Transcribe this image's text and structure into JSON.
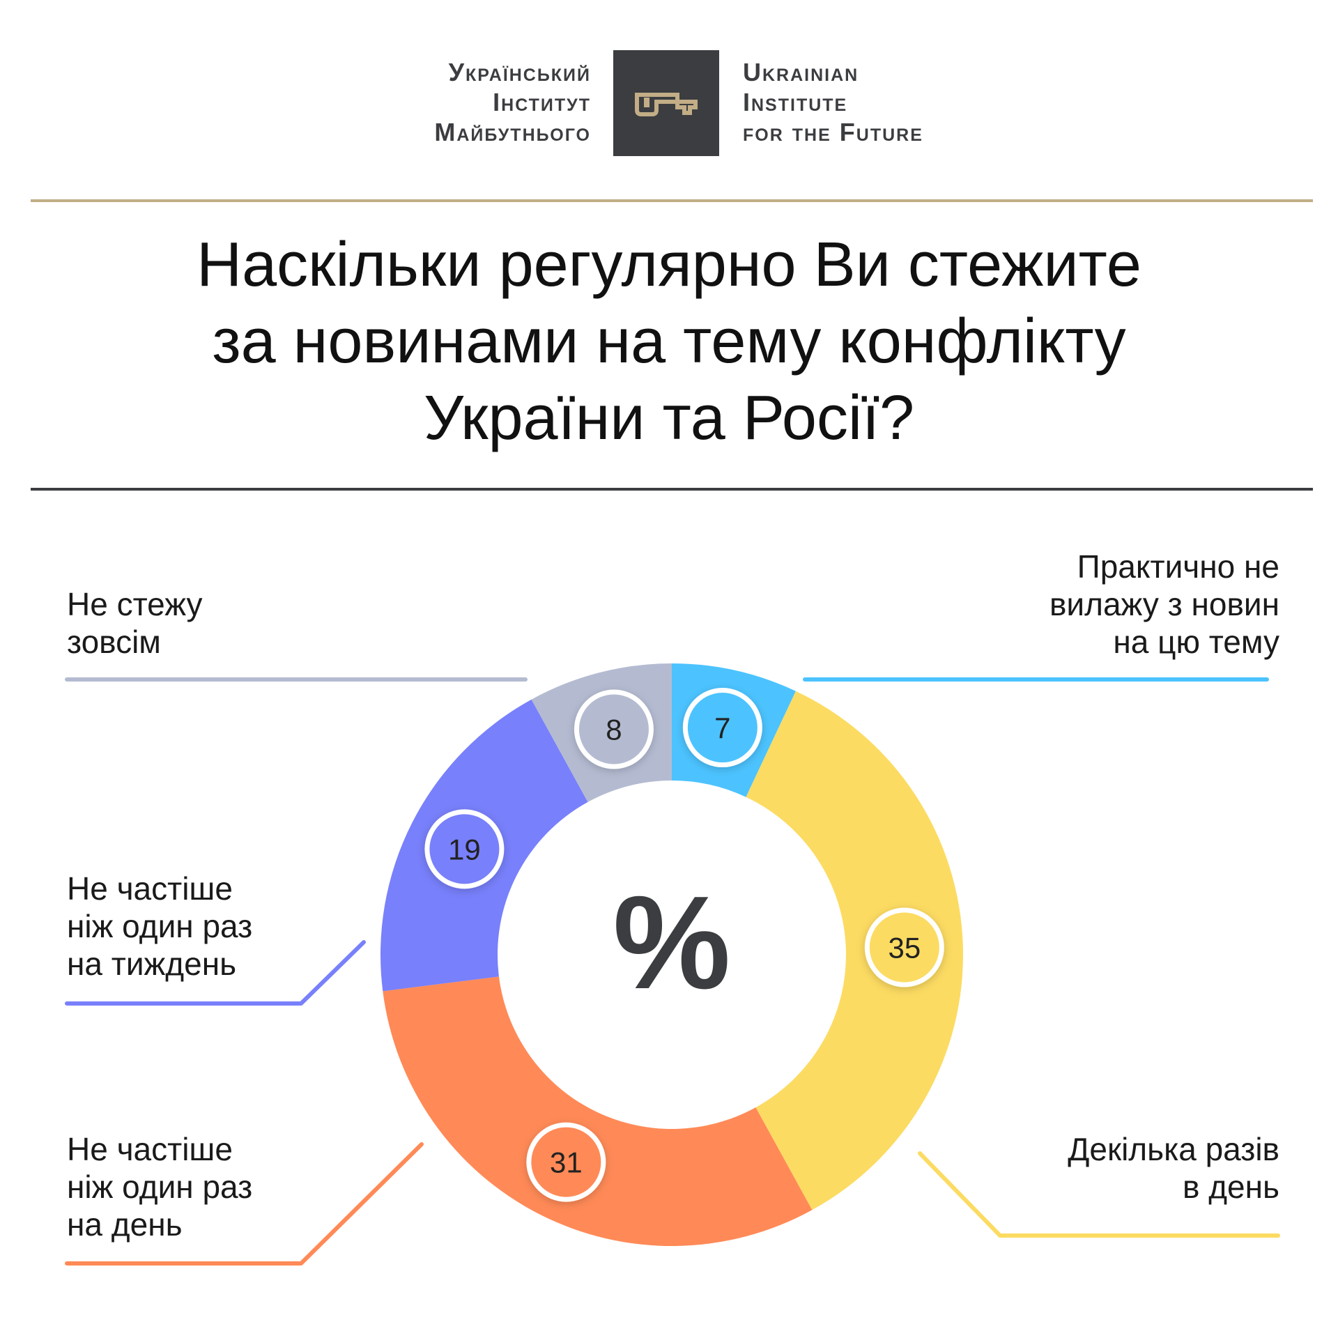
{
  "logo": {
    "ua_lines": [
      "Український",
      "Інститут",
      "Майбутнього"
    ],
    "en_lines": [
      "Ukrainian",
      "Institute",
      "for the Future"
    ],
    "icon": "key-icon",
    "box_color": "#3b3d40",
    "icon_color": "#c2ad86"
  },
  "title_lines": [
    "Наскільки регулярно Ви стежите",
    "за новинами на тему конфлікту",
    "України та Росії?"
  ],
  "center_label": "%",
  "chart_data": {
    "type": "pie",
    "donut": true,
    "unit": "%",
    "start_at": "top",
    "direction": "clockwise",
    "slices": [
      {
        "label": "Практично не вилажу з новин на цю тему",
        "value": 7,
        "color": "#4cc3ff"
      },
      {
        "label": "Декілька разів в день",
        "value": 35,
        "color": "#fcdb62"
      },
      {
        "label": "Не частіше ніж один раз на день",
        "value": 31,
        "color": "#ff8a57"
      },
      {
        "label": "Не частіше ніж один раз на тиждень",
        "value": 19,
        "color": "#7880fb"
      },
      {
        "label": "Не стежу зовсім",
        "value": 8,
        "color": "#b4bbd1"
      }
    ]
  },
  "labels": {
    "practically": [
      "Практично не",
      "вилажу з новин",
      "на цю тему"
    ],
    "several": [
      "Декілька разів",
      "в день"
    ],
    "daily": [
      "Не частіше",
      "ніж один раз",
      "на день"
    ],
    "weekly": [
      "Не частіше",
      "ніж один раз",
      "на тиждень"
    ],
    "none": [
      "Не стежу",
      "зовсім"
    ]
  }
}
